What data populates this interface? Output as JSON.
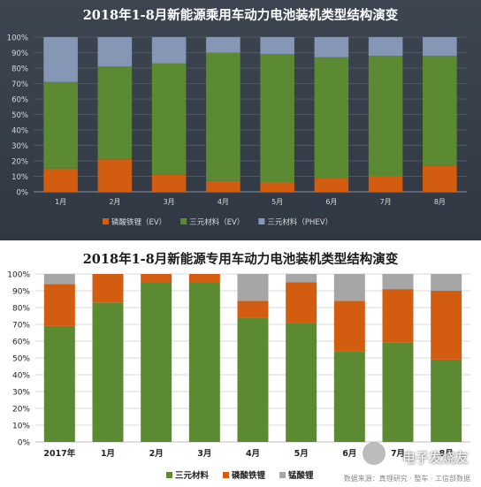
{
  "colors": {
    "lfp": "#d25d10",
    "ncm": "#5c8a33",
    "phev": "#8697b5",
    "lmo": "#a6a6a6",
    "top_bg": "#343d48",
    "top_axis_text": "#d9d9d9"
  },
  "watermark": {
    "text": "电子发烧友",
    "source": "数据来源：真锂研究 · 整车 · 工信部数据"
  },
  "chart_data": [
    {
      "type": "bar",
      "stacked": "100%",
      "title": "2018年1-8月新能源乘用车动力电池装机类型结构演变",
      "categories": [
        "1月",
        "2月",
        "3月",
        "4月",
        "5月",
        "6月",
        "7月",
        "8月"
      ],
      "ylim": [
        0,
        100
      ],
      "yticks": [
        "0%",
        "10%",
        "20%",
        "30%",
        "40%",
        "50%",
        "60%",
        "70%",
        "80%",
        "90%",
        "100%"
      ],
      "legend_position": "bottom",
      "series": [
        {
          "name": "磷酸铁锂（EV）",
          "color_key": "lfp",
          "values": [
            15,
            21,
            11,
            7,
            6,
            9,
            10,
            17
          ]
        },
        {
          "name": "三元材料（EV）",
          "color_key": "ncm",
          "values": [
            56,
            60,
            72,
            83,
            83,
            78,
            78,
            71
          ]
        },
        {
          "name": "三元材料（PHEV）",
          "color_key": "phev",
          "values": [
            29,
            19,
            17,
            10,
            11,
            13,
            12,
            12
          ]
        }
      ]
    },
    {
      "type": "bar",
      "stacked": "100%",
      "title": "2018年1-8月新能源专用车动力电池装机类型结构演变",
      "categories": [
        "2017年",
        "1月",
        "2月",
        "3月",
        "4月",
        "5月",
        "6月",
        "7月",
        "8月"
      ],
      "ylim": [
        0,
        100
      ],
      "yticks": [
        "0%",
        "10%",
        "20%",
        "30%",
        "40%",
        "50%",
        "60%",
        "70%",
        "80%",
        "90%",
        "100%"
      ],
      "legend_position": "bottom",
      "series": [
        {
          "name": "三元材料",
          "color_key": "ncm",
          "values": [
            69,
            83,
            95,
            95,
            74,
            71,
            54,
            59,
            49
          ]
        },
        {
          "name": "磷酸铁锂",
          "color_key": "lfp",
          "values": [
            25,
            17,
            5,
            5,
            10,
            24,
            30,
            32,
            41
          ]
        },
        {
          "name": "锰酸锂",
          "color_key": "lmo",
          "values": [
            6,
            0,
            0,
            0,
            16,
            5,
            16,
            9,
            10
          ]
        }
      ]
    }
  ]
}
